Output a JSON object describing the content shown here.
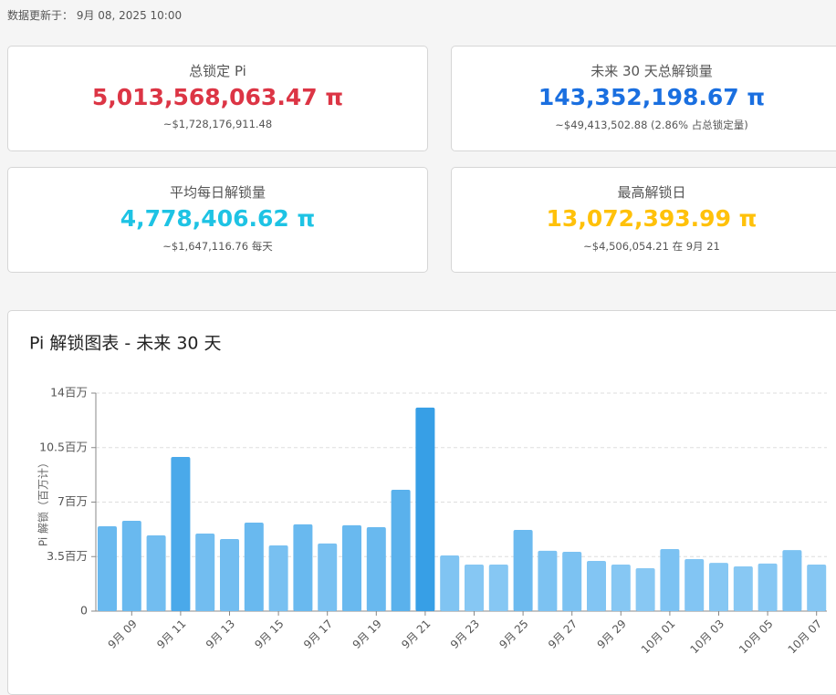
{
  "updated": "数据更新于： 9月 08, 2025 10:00",
  "cards": [
    {
      "title": "总锁定 Pi",
      "value": "5,013,568,063.47 π",
      "sub": "~$1,728,176,911.48",
      "color": "#dc3545"
    },
    {
      "title": "未来 30 天总解锁量",
      "value": "143,352,198.67 π",
      "sub": "~$49,413,502.88 (2.86% 占总锁定量)",
      "color": "#1a6fe0"
    },
    {
      "title": "平均每日解锁量",
      "value": "4,778,406.62 π",
      "sub": "~$1,647,116.76 每天",
      "color": "#1ec3e4"
    },
    {
      "title": "最高解锁日",
      "value": "13,072,393.99 π",
      "sub": "~$4,506,054.21 在 9月 21",
      "color": "#ffc10a"
    }
  ],
  "chart_data": {
    "type": "bar",
    "title": "Pi 解锁图表 - 未来 30 天",
    "y_label": "Pi 解锁（百万计）",
    "categories": [
      null,
      "9月 09",
      null,
      "9月 11",
      null,
      "9月 13",
      null,
      "9月 15",
      null,
      "9月 17",
      null,
      "9月 19",
      null,
      "9月 21",
      null,
      "9月 23",
      null,
      "9月 25",
      null,
      "9月 27",
      null,
      "9月 29",
      null,
      "10月 01",
      null,
      "10月 03",
      null,
      "10月 05",
      null,
      "10月 07"
    ],
    "values": [
      5.45,
      5.8,
      4.86,
      9.9,
      4.98,
      4.63,
      5.68,
      4.22,
      5.57,
      4.34,
      5.51,
      5.39,
      7.79,
      13.07,
      3.57,
      2.99,
      2.99,
      5.21,
      3.87,
      3.81,
      3.22,
      2.99,
      2.75,
      3.98,
      3.34,
      3.1,
      2.87,
      3.05,
      3.92,
      2.99
    ],
    "colors": [
      "#69b9ef",
      "#69b9ef",
      "#72bdf0",
      "#4aa9ea",
      "#72bdf0",
      "#72bdf0",
      "#69b9ef",
      "#78c0f1",
      "#69b9ef",
      "#78c0f1",
      "#69b9ef",
      "#69b9ef",
      "#5ab1ec",
      "#379fe6",
      "#80c4f2",
      "#86c7f3",
      "#86c7f3",
      "#6cbaef",
      "#7cc2f2",
      "#7cc2f2",
      "#82c5f3",
      "#86c7f3",
      "#88c8f3",
      "#7cc2f2",
      "#82c5f3",
      "#86c7f3",
      "#88c8f3",
      "#86c7f3",
      "#7cc2f2",
      "#86c7f3"
    ],
    "ylim": [
      0,
      14
    ],
    "yticks": [
      0,
      {
        "value": 3.5,
        "label": "3.5百万"
      },
      {
        "value": 7,
        "label": "7百万"
      },
      {
        "value": 10.5,
        "label": "10.5百万"
      },
      {
        "value": 14,
        "label": "14百万"
      }
    ],
    "grid": true
  }
}
